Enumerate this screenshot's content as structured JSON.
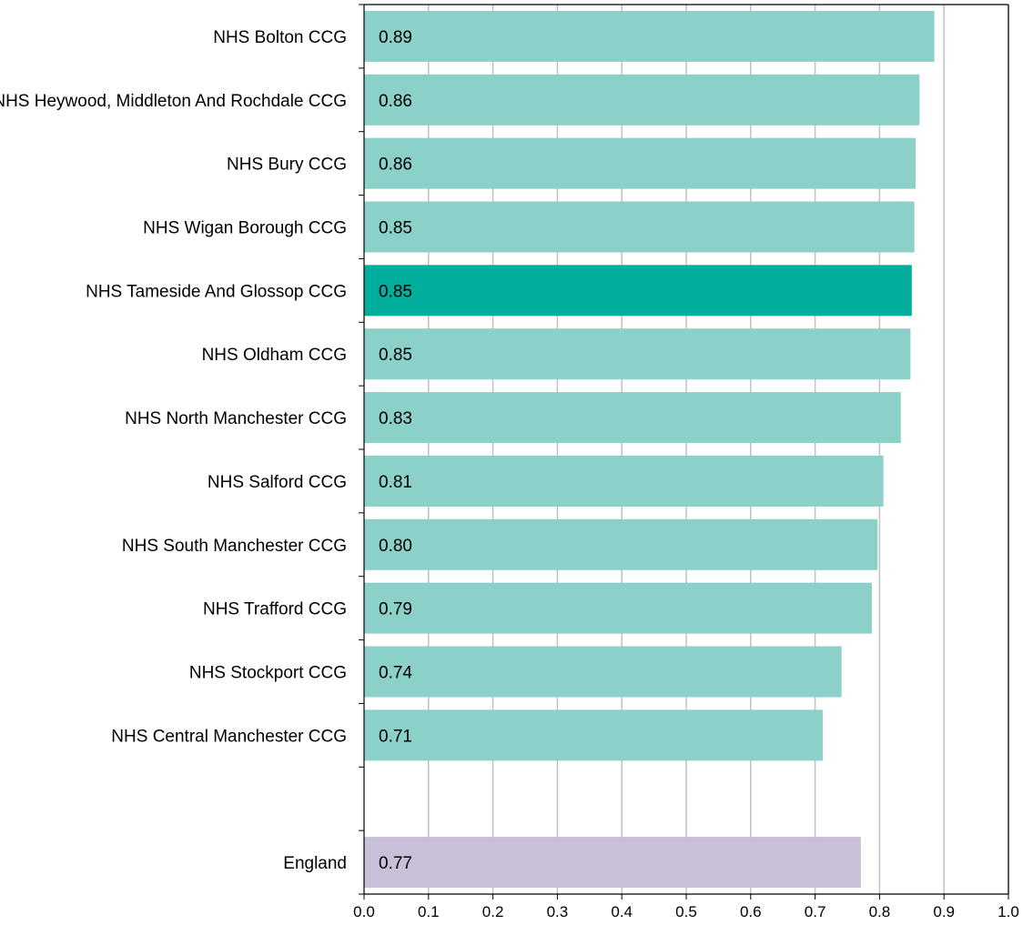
{
  "chart_data": {
    "type": "bar",
    "orientation": "horizontal",
    "categories": [
      "NHS Bolton CCG",
      "NHS Heywood, Middleton And Rochdale CCG",
      "NHS Bury CCG",
      "NHS Wigan Borough CCG",
      "NHS Tameside And Glossop CCG",
      "NHS Oldham CCG",
      "NHS North Manchester CCG",
      "NHS Salford CCG",
      "NHS South Manchester CCG",
      "NHS Trafford CCG",
      "NHS Stockport CCG",
      "NHS Central Manchester CCG",
      "",
      "England"
    ],
    "values": [
      0.885,
      0.862,
      0.856,
      0.854,
      0.85,
      0.848,
      0.833,
      0.806,
      0.797,
      0.788,
      0.741,
      0.712,
      null,
      0.771
    ],
    "value_labels": [
      "0.89",
      "0.86",
      "0.86",
      "0.85",
      "0.85",
      "0.85",
      "0.83",
      "0.81",
      "0.80",
      "0.79",
      "0.74",
      "0.71",
      "",
      "0.77"
    ],
    "highlight": "NHS Tameside And Glossop CCG",
    "comparator": "England",
    "xlim": [
      0,
      1.0
    ],
    "xticks": [
      "0.0",
      "0.1",
      "0.2",
      "0.3",
      "0.4",
      "0.5",
      "0.6",
      "0.7",
      "0.8",
      "0.9",
      "1.0"
    ],
    "title": "",
    "xlabel": "",
    "ylabel": "",
    "grid": "vertical",
    "legend": "none",
    "colors": {
      "bar": "#8cd1c9",
      "highlight": "#00ae9e",
      "comparator": "#c9bfd9",
      "grid": "#c0c0c0",
      "axis": "#000000"
    }
  }
}
